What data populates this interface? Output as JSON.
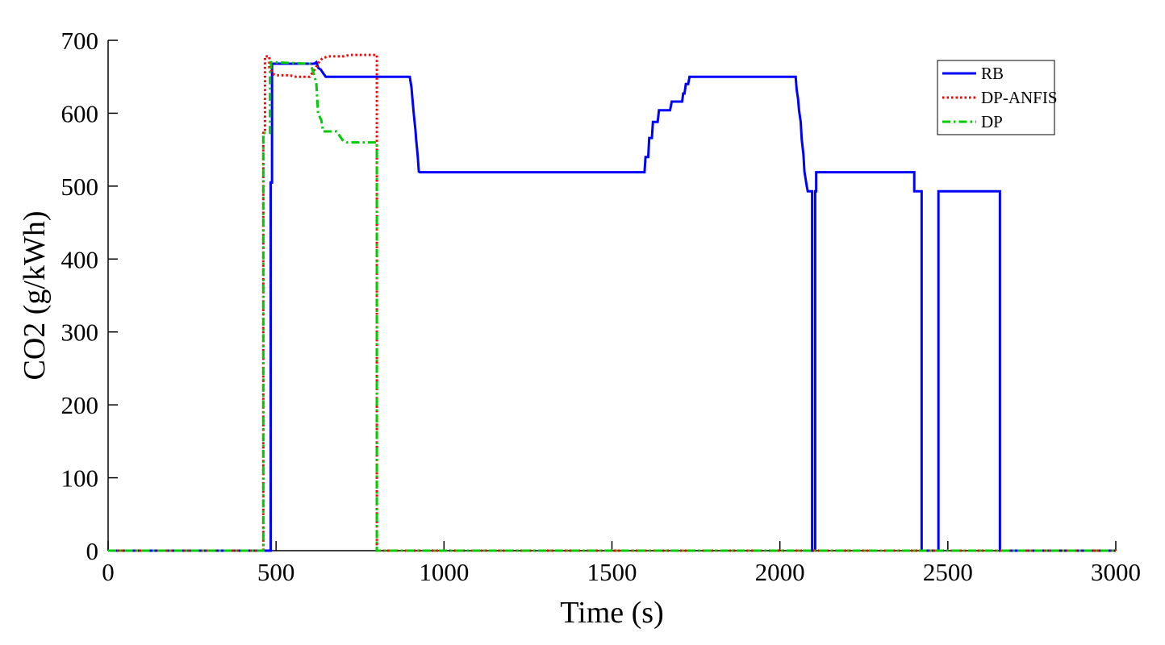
{
  "chart_data": {
    "type": "line",
    "title": "",
    "xlabel": "Time (s)",
    "ylabel": "CO2 (g/kWh)",
    "xlim": [
      0,
      3000
    ],
    "ylim": [
      0,
      700
    ],
    "xticks": [
      0,
      500,
      1000,
      1500,
      2000,
      2500,
      3000
    ],
    "yticks": [
      0,
      100,
      200,
      300,
      400,
      500,
      600,
      700
    ],
    "grid": false,
    "legend_position": "top-right",
    "series": [
      {
        "name": "RB",
        "color": "#0000ff",
        "style": "solid",
        "x": [
          0,
          484,
          484,
          488,
          488,
          614,
          620,
          626,
          633,
          640,
          648,
          898,
          903,
          906,
          909,
          912,
          915,
          917,
          920,
          922,
          925,
          928,
          1597,
          1600,
          1608,
          1611,
          1619,
          1622,
          1636,
          1640,
          1650,
          1655,
          1673,
          1678,
          1709,
          1712,
          1716,
          1720,
          1727,
          1731,
          1736,
          1740,
          1746,
          2047,
          2050,
          2054,
          2057,
          2062,
          2065,
          2070,
          2073,
          2080,
          2083,
          2089,
          2092,
          2096,
          2096,
          2105,
          2105,
          2108,
          2108,
          2400,
          2400,
          2422,
          2422,
          2472,
          2472,
          2655,
          2655,
          3000
        ],
        "y": [
          0,
          0,
          505,
          505,
          668,
          668,
          670,
          662,
          660,
          655,
          650,
          650,
          636,
          620,
          604,
          590,
          577,
          564,
          550,
          540,
          520,
          519,
          519,
          540,
          540,
          566,
          566,
          588,
          588,
          604,
          604,
          604,
          604,
          616,
          616,
          627,
          627,
          640,
          640,
          650,
          650,
          650,
          650,
          650,
          632,
          620,
          604,
          588,
          564,
          544,
          520,
          500,
          493,
          493,
          493,
          493,
          0,
          0,
          493,
          493,
          519,
          519,
          493,
          493,
          0,
          0,
          493,
          493,
          0,
          0
        ]
      },
      {
        "name": "DP-ANFIS",
        "color": "#ff0000",
        "style": "dotted",
        "x": [
          0,
          462,
          462,
          467,
          467,
          480,
          480,
          490,
          500,
          540,
          560,
          600,
          615,
          625,
          630,
          640,
          660,
          700,
          720,
          800,
          800,
          3000
        ],
        "y": [
          0,
          0,
          573,
          573,
          678,
          678,
          662,
          654,
          652,
          652,
          650,
          650,
          660,
          668,
          672,
          676,
          678,
          678,
          680,
          680,
          0,
          0
        ]
      },
      {
        "name": "DP",
        "color": "#00cc00",
        "style": "dashdot",
        "x": [
          0,
          462,
          462,
          482,
          482,
          485,
          485,
          595,
          600,
          605,
          608,
          615,
          620,
          622,
          625,
          635,
          640,
          680,
          700,
          710,
          800,
          800,
          3000
        ],
        "y": [
          0,
          0,
          573,
          573,
          658,
          658,
          670,
          668,
          668,
          665,
          660,
          650,
          640,
          625,
          600,
          590,
          575,
          575,
          562,
          560,
          560,
          0,
          0
        ]
      }
    ]
  }
}
